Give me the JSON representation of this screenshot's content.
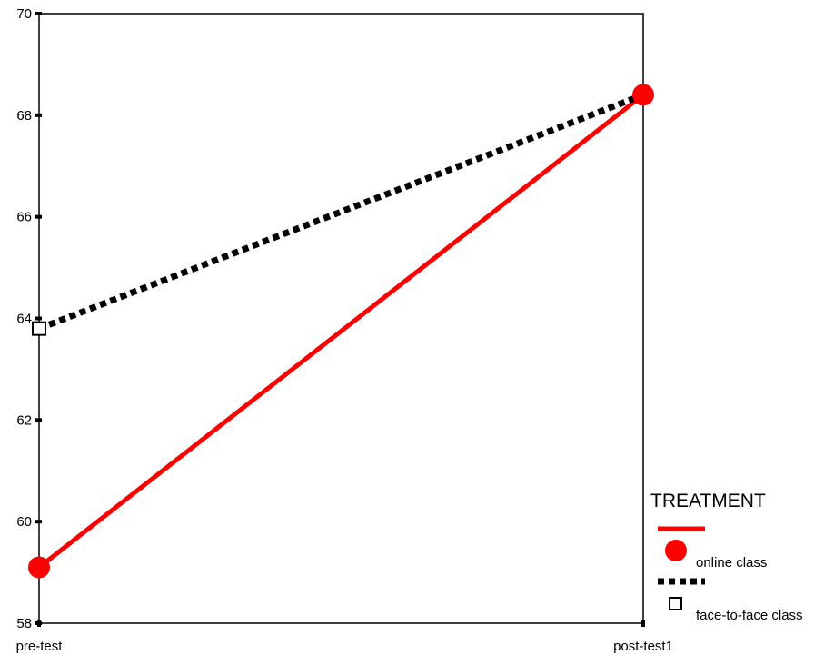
{
  "chart_data": {
    "type": "line",
    "title": "",
    "xlabel": "",
    "ylabel": "",
    "categories": [
      "pre-test",
      "post-test1"
    ],
    "ylim": [
      58,
      70
    ],
    "yticks": [
      58,
      60,
      62,
      64,
      66,
      68,
      70
    ],
    "grid": false,
    "legend_position": "bottom-right",
    "legend_title": "TREATMENT",
    "series": [
      {
        "name": "online class",
        "values": [
          59.1,
          68.4
        ],
        "color": "#ff0000",
        "line_style": "solid",
        "marker": "filled-circle"
      },
      {
        "name": "face-to-face class",
        "values": [
          63.8,
          68.4
        ],
        "color": "#000000",
        "line_style": "dotted",
        "marker": "open-square"
      }
    ]
  }
}
